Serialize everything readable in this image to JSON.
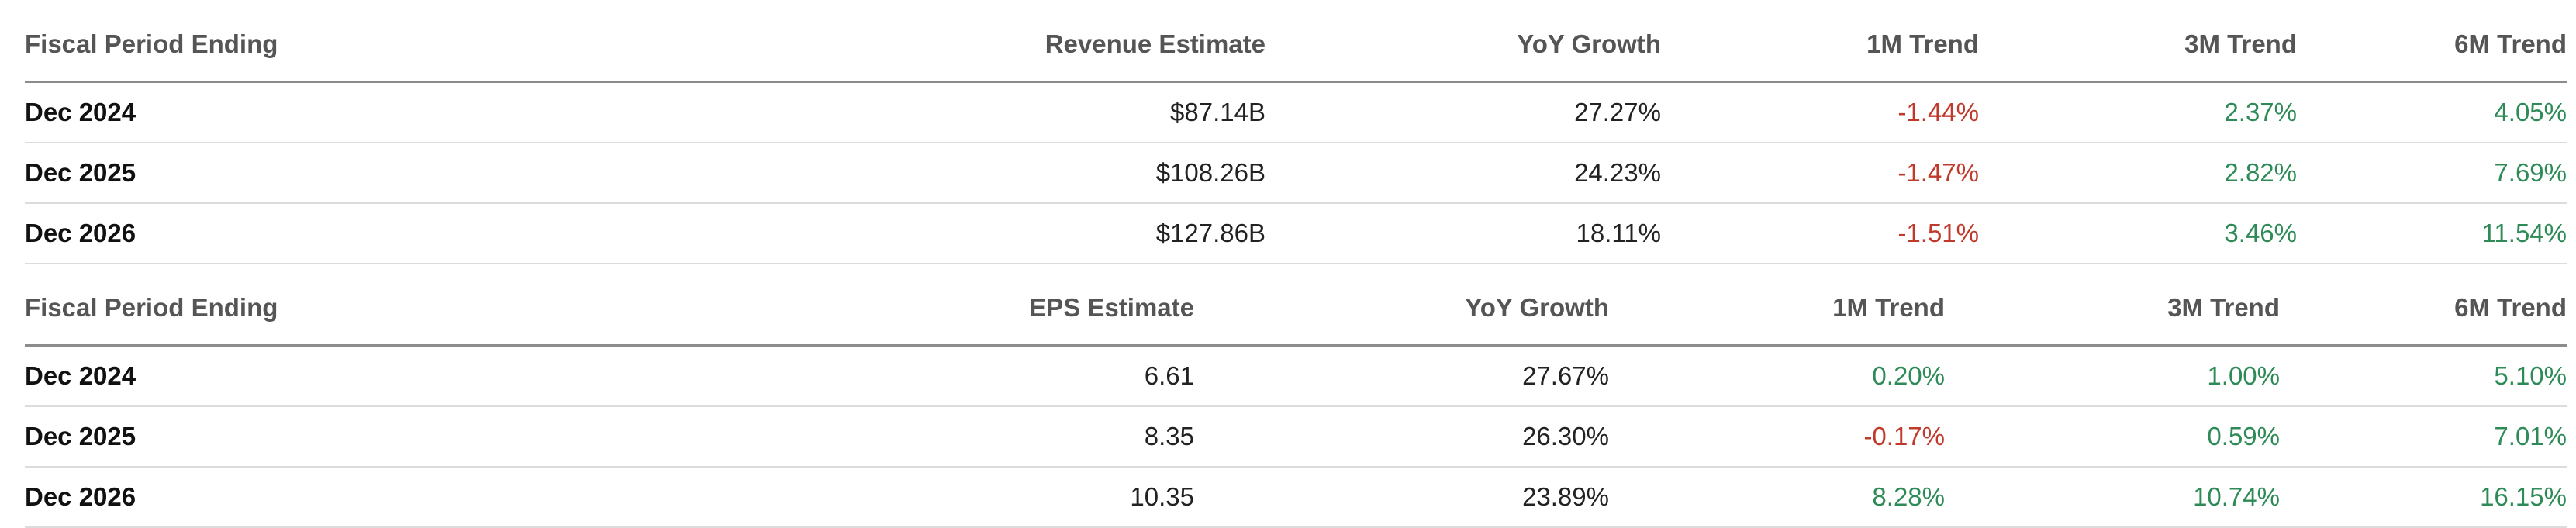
{
  "revenue_table": {
    "headers": [
      "Fiscal Period Ending",
      "Revenue Estimate",
      "YoY Growth",
      "1M Trend",
      "3M Trend",
      "6M Trend"
    ],
    "rows": [
      {
        "period": "Dec 2024",
        "estimate": "$87.14B",
        "yoy": "27.27%",
        "m1": "-1.44%",
        "m3": "2.37%",
        "m6": "4.05%"
      },
      {
        "period": "Dec 2025",
        "estimate": "$108.26B",
        "yoy": "24.23%",
        "m1": "-1.47%",
        "m3": "2.82%",
        "m6": "7.69%"
      },
      {
        "period": "Dec 2026",
        "estimate": "$127.86B",
        "yoy": "18.11%",
        "m1": "-1.51%",
        "m3": "3.46%",
        "m6": "11.54%"
      }
    ]
  },
  "eps_table": {
    "headers": [
      "Fiscal Period Ending",
      "EPS Estimate",
      "YoY Growth",
      "1M Trend",
      "3M Trend",
      "6M Trend"
    ],
    "rows": [
      {
        "period": "Dec 2024",
        "estimate": "6.61",
        "yoy": "27.67%",
        "m1": "0.20%",
        "m3": "1.00%",
        "m6": "5.10%"
      },
      {
        "period": "Dec 2025",
        "estimate": "8.35",
        "yoy": "26.30%",
        "m1": "-0.17%",
        "m3": "0.59%",
        "m6": "7.01%"
      },
      {
        "period": "Dec 2026",
        "estimate": "10.35",
        "yoy": "23.89%",
        "m1": "8.28%",
        "m3": "10.74%",
        "m6": "16.15%"
      }
    ]
  },
  "colors": {
    "negative": "#c0392b",
    "positive": "#2e8b57",
    "header_text": "#555555",
    "header_rule": "#8c8c8c",
    "row_rule": "#dcdcdc"
  }
}
